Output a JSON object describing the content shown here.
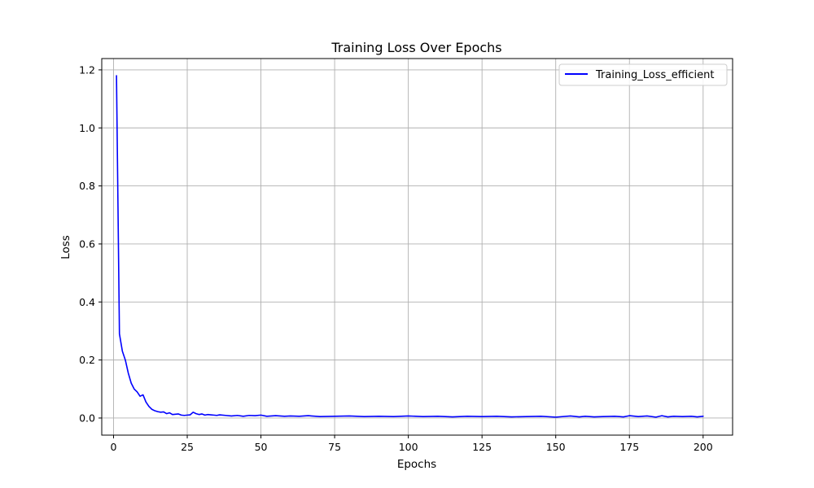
{
  "chart_data": {
    "type": "line",
    "title": "Training Loss Over Epochs",
    "xlabel": "Epochs",
    "ylabel": "Loss",
    "xlim": [
      -4,
      210
    ],
    "ylim": [
      -0.059,
      1.239
    ],
    "xticks": [
      0,
      25,
      50,
      75,
      100,
      125,
      150,
      175,
      200
    ],
    "yticks": [
      0.0,
      0.2,
      0.4,
      0.6,
      0.8,
      1.0,
      1.2
    ],
    "grid": true,
    "legend_position": "top-right",
    "series": [
      {
        "name": "Training_Loss_efficient",
        "color": "#0000ff",
        "points": [
          [
            1,
            1.18
          ],
          [
            2,
            0.29
          ],
          [
            3,
            0.23
          ],
          [
            4,
            0.2
          ],
          [
            5,
            0.155
          ],
          [
            6,
            0.12
          ],
          [
            7,
            0.1
          ],
          [
            8,
            0.09
          ],
          [
            9,
            0.075
          ],
          [
            10,
            0.08
          ],
          [
            11,
            0.055
          ],
          [
            12,
            0.04
          ],
          [
            13,
            0.03
          ],
          [
            14,
            0.025
          ],
          [
            15,
            0.022
          ],
          [
            16,
            0.02
          ],
          [
            17,
            0.021
          ],
          [
            18,
            0.015
          ],
          [
            19,
            0.018
          ],
          [
            20,
            0.012
          ],
          [
            21,
            0.013
          ],
          [
            22,
            0.014
          ],
          [
            23,
            0.01
          ],
          [
            24,
            0.009
          ],
          [
            25,
            0.01
          ],
          [
            26,
            0.011
          ],
          [
            27,
            0.02
          ],
          [
            28,
            0.015
          ],
          [
            29,
            0.012
          ],
          [
            30,
            0.014
          ],
          [
            31,
            0.01
          ],
          [
            32,
            0.012
          ],
          [
            33,
            0.011
          ],
          [
            34,
            0.01
          ],
          [
            35,
            0.009
          ],
          [
            36,
            0.011
          ],
          [
            38,
            0.009
          ],
          [
            40,
            0.007
          ],
          [
            42,
            0.009
          ],
          [
            44,
            0.006
          ],
          [
            46,
            0.009
          ],
          [
            48,
            0.008
          ],
          [
            50,
            0.01
          ],
          [
            52,
            0.006
          ],
          [
            55,
            0.008
          ],
          [
            58,
            0.006
          ],
          [
            60,
            0.007
          ],
          [
            63,
            0.006
          ],
          [
            66,
            0.008
          ],
          [
            70,
            0.005
          ],
          [
            75,
            0.006
          ],
          [
            80,
            0.007
          ],
          [
            85,
            0.005
          ],
          [
            90,
            0.006
          ],
          [
            95,
            0.005
          ],
          [
            100,
            0.007
          ],
          [
            105,
            0.005
          ],
          [
            110,
            0.006
          ],
          [
            115,
            0.004
          ],
          [
            120,
            0.006
          ],
          [
            125,
            0.005
          ],
          [
            130,
            0.006
          ],
          [
            135,
            0.004
          ],
          [
            140,
            0.005
          ],
          [
            145,
            0.006
          ],
          [
            150,
            0.003
          ],
          [
            155,
            0.007
          ],
          [
            158,
            0.004
          ],
          [
            160,
            0.006
          ],
          [
            163,
            0.004
          ],
          [
            166,
            0.005
          ],
          [
            170,
            0.006
          ],
          [
            173,
            0.004
          ],
          [
            175,
            0.008
          ],
          [
            178,
            0.005
          ],
          [
            181,
            0.007
          ],
          [
            184,
            0.003
          ],
          [
            186,
            0.008
          ],
          [
            188,
            0.004
          ],
          [
            190,
            0.006
          ],
          [
            193,
            0.005
          ],
          [
            196,
            0.006
          ],
          [
            198,
            0.004
          ],
          [
            200,
            0.006
          ]
        ]
      }
    ]
  }
}
